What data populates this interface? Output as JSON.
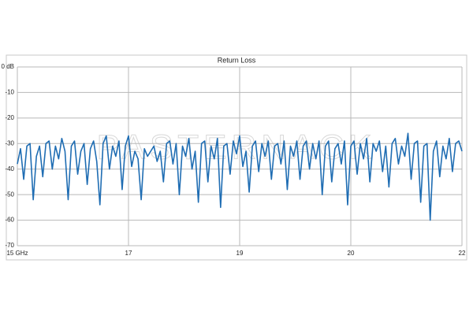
{
  "chart_data": {
    "type": "line",
    "title": "Return Loss",
    "watermark": "PASTERNACK",
    "xlim": [
      15,
      22
    ],
    "xticks": [
      {
        "value": 15,
        "label": "15 GHz"
      },
      {
        "value": 16.75,
        "label": "17"
      },
      {
        "value": 18.5,
        "label": "19"
      },
      {
        "value": 20.25,
        "label": "20"
      },
      22
    ],
    "ylim": [
      -70,
      0
    ],
    "yticks": [
      {
        "value": 0,
        "label": "0 dB"
      },
      -10,
      -20,
      -30,
      -40,
      -50,
      -60,
      -70
    ],
    "grid": true,
    "x": [
      15,
      15.05,
      15.1,
      15.15,
      15.2,
      15.25,
      15.3,
      15.35,
      15.4,
      15.45,
      15.5,
      15.55,
      15.6,
      15.65,
      15.7,
      15.75,
      15.8,
      15.85,
      15.9,
      15.95,
      16,
      16.05,
      16.1,
      16.15,
      16.2,
      16.25,
      16.3,
      16.35,
      16.4,
      16.45,
      16.5,
      16.55,
      16.6,
      16.65,
      16.7,
      16.75,
      16.8,
      16.85,
      16.9,
      16.95,
      17,
      17.05,
      17.1,
      17.15,
      17.2,
      17.25,
      17.3,
      17.35,
      17.4,
      17.45,
      17.5,
      17.55,
      17.6,
      17.65,
      17.7,
      17.75,
      17.8,
      17.85,
      17.9,
      17.95,
      18,
      18.05,
      18.1,
      18.15,
      18.2,
      18.25,
      18.3,
      18.35,
      18.4,
      18.45,
      18.5,
      18.55,
      18.6,
      18.65,
      18.7,
      18.75,
      18.8,
      18.85,
      18.9,
      18.95,
      19,
      19.05,
      19.1,
      19.15,
      19.2,
      19.25,
      19.3,
      19.35,
      19.4,
      19.45,
      19.5,
      19.55,
      19.6,
      19.65,
      19.7,
      19.75,
      19.8,
      19.85,
      19.9,
      19.95,
      20,
      20.05,
      20.1,
      20.15,
      20.2,
      20.25,
      20.3,
      20.35,
      20.4,
      20.45,
      20.5,
      20.55,
      20.6,
      20.65,
      20.7,
      20.75,
      20.8,
      20.85,
      20.9,
      20.95,
      21,
      21.05,
      21.1,
      21.15,
      21.2,
      21.25,
      21.3,
      21.35,
      21.4,
      21.45,
      21.5,
      21.55,
      21.6,
      21.65,
      21.7,
      21.75,
      21.8,
      21.85,
      21.9,
      21.95,
      22
    ],
    "series": [
      {
        "color": "#1f6db3",
        "values": [
          -38,
          -32,
          -44,
          -31,
          -30,
          -52,
          -35,
          -31,
          -43,
          -30,
          -29,
          -40,
          -31,
          -36,
          -28,
          -33,
          -52,
          -31,
          -29,
          -42,
          -33,
          -30,
          -46,
          -32,
          -29,
          -37,
          -54,
          -30,
          -27,
          -40,
          -31,
          -35,
          -29,
          -48,
          -31,
          -27,
          -39,
          -33,
          -36,
          -52,
          -32,
          -35,
          -33,
          -31,
          -37,
          -33,
          -45,
          -30,
          -29,
          -38,
          -30,
          -50,
          -31,
          -35,
          -28,
          -40,
          -33,
          -53,
          -30,
          -29,
          -45,
          -31,
          -36,
          -28,
          -55,
          -31,
          -30,
          -42,
          -29,
          -34,
          -27,
          -39,
          -33,
          -49,
          -31,
          -29,
          -41,
          -30,
          -35,
          -29,
          -44,
          -31,
          -30,
          -38,
          -29,
          -48,
          -31,
          -35,
          -29,
          -44,
          -31,
          -29,
          -40,
          -30,
          -36,
          -29,
          -50,
          -31,
          -29,
          -45,
          -32,
          -30,
          -38,
          -29,
          -54,
          -31,
          -29,
          -42,
          -30,
          -36,
          -28,
          -45,
          -30,
          -33,
          -29,
          -41,
          -31,
          -47,
          -30,
          -28,
          -38,
          -31,
          -35,
          -26,
          -44,
          -30,
          -29,
          -53,
          -31,
          -30,
          -60,
          -33,
          -29,
          -43,
          -31,
          -36,
          -28,
          -41,
          -30,
          -29,
          -33
        ]
      }
    ]
  }
}
